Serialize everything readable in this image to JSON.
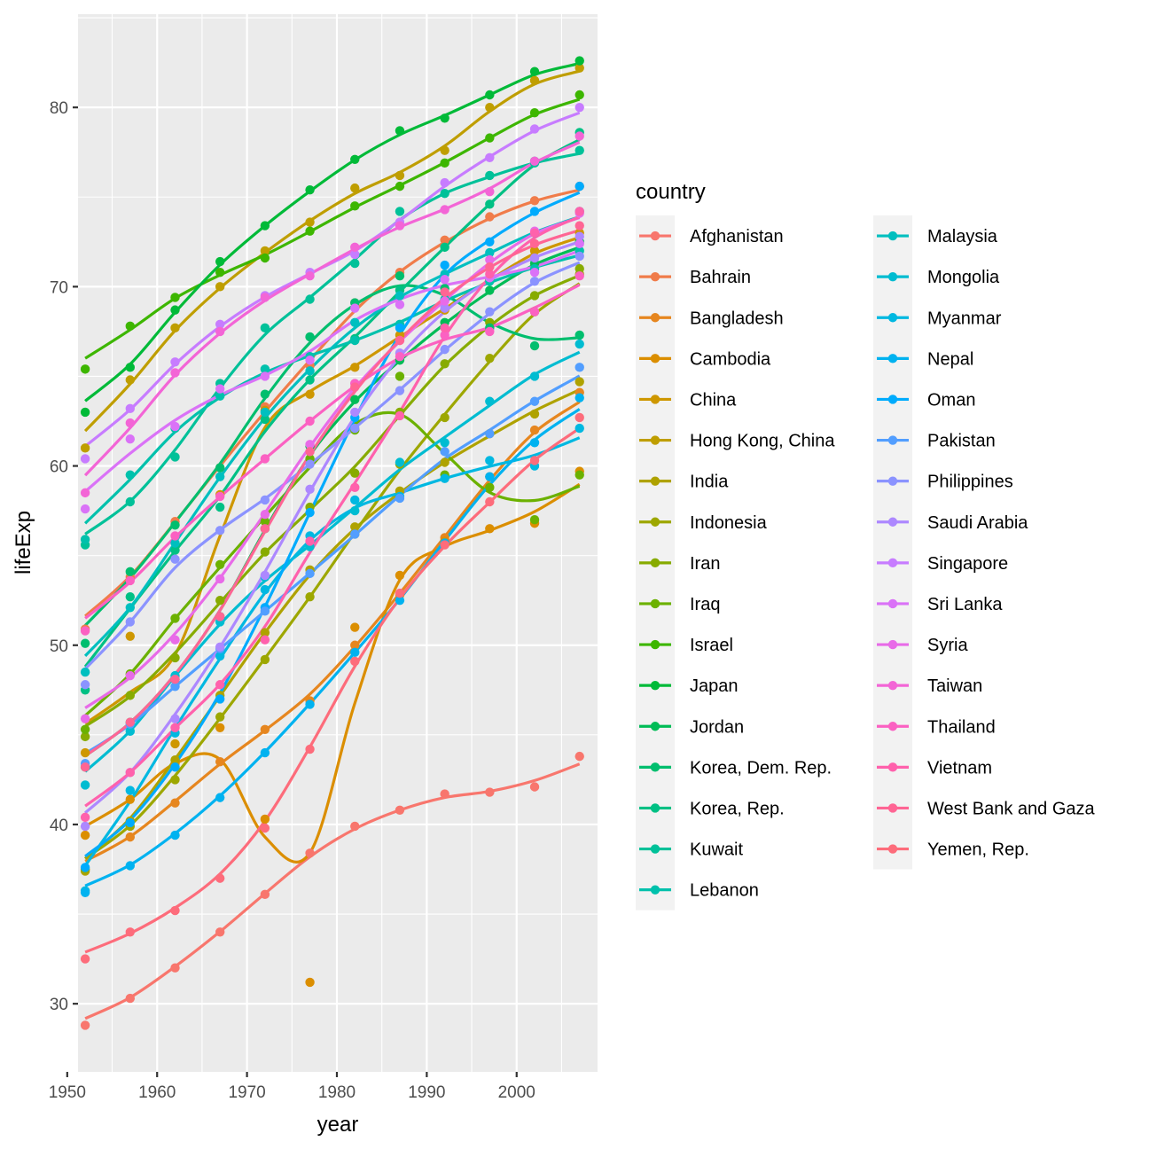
{
  "chart_data": {
    "type": "scatter",
    "subtype": "points-with-smoothed-lines",
    "xlabel": "year",
    "ylabel": "lifeExp",
    "xlim": [
      1951.2,
      2009
    ],
    "ylim": [
      26.2,
      85.2
    ],
    "x_ticks": [
      1950,
      1960,
      1970,
      1980,
      1990,
      2000
    ],
    "y_ticks": [
      30,
      40,
      50,
      60,
      70,
      80
    ],
    "grid": true,
    "legend": {
      "title": "country",
      "position": "right",
      "columns": 2
    },
    "x": [
      1952,
      1957,
      1962,
      1967,
      1972,
      1977,
      1982,
      1987,
      1992,
      1997,
      2002,
      2007
    ],
    "series": [
      {
        "name": "Afghanistan",
        "color": "#F8766D",
        "values": [
          28.8,
          30.3,
          32.0,
          34.0,
          36.1,
          38.4,
          39.9,
          40.8,
          41.7,
          41.8,
          42.1,
          43.8
        ]
      },
      {
        "name": "Bahrain",
        "color": "#F07C4A",
        "values": [
          50.9,
          53.8,
          56.9,
          59.9,
          63.3,
          65.6,
          69.1,
          70.8,
          72.6,
          73.9,
          74.8,
          75.6
        ]
      },
      {
        "name": "Bangladesh",
        "color": "#E6861F",
        "values": [
          37.5,
          39.3,
          41.2,
          43.5,
          45.3,
          46.9,
          50.0,
          52.8,
          56.0,
          59.4,
          62.0,
          64.1
        ]
      },
      {
        "name": "Cambodia",
        "color": "#DB8E00",
        "values": [
          39.4,
          41.4,
          43.4,
          45.4,
          40.3,
          31.2,
          51.0,
          53.9,
          55.8,
          56.5,
          56.8,
          59.7
        ]
      },
      {
        "name": "China",
        "color": "#CE9700",
        "values": [
          44.0,
          50.5,
          44.5,
          58.4,
          63.1,
          64.0,
          65.5,
          67.3,
          68.7,
          70.4,
          72.0,
          73.0
        ]
      },
      {
        "name": "Hong Kong, China",
        "color": "#BF9E00",
        "values": [
          61.0,
          64.8,
          67.7,
          70.0,
          72.0,
          73.6,
          75.5,
          76.2,
          77.6,
          80.0,
          81.5,
          82.2
        ]
      },
      {
        "name": "India",
        "color": "#AFA200",
        "values": [
          37.4,
          40.2,
          43.6,
          47.2,
          50.7,
          54.2,
          56.6,
          58.6,
          60.2,
          61.8,
          62.9,
          64.7
        ]
      },
      {
        "name": "Indonesia",
        "color": "#9DA700",
        "values": [
          37.5,
          39.9,
          42.5,
          46.0,
          49.2,
          52.7,
          56.2,
          60.1,
          62.7,
          66.0,
          68.6,
          70.7
        ]
      },
      {
        "name": "Iran",
        "color": "#87AB00",
        "values": [
          44.9,
          47.2,
          49.3,
          52.5,
          55.2,
          57.7,
          59.6,
          63.0,
          65.7,
          68.0,
          69.5,
          71.0
        ]
      },
      {
        "name": "Iraq",
        "color": "#6BB100",
        "values": [
          45.3,
          48.4,
          51.5,
          54.5,
          56.9,
          60.4,
          62.0,
          65.0,
          59.5,
          58.8,
          57.0,
          59.5
        ]
      },
      {
        "name": "Israel",
        "color": "#3DB600",
        "values": [
          65.4,
          67.8,
          69.4,
          70.8,
          71.6,
          73.1,
          74.5,
          75.6,
          76.9,
          78.3,
          79.7,
          80.7
        ]
      },
      {
        "name": "Japan",
        "color": "#00BA38",
        "values": [
          63.0,
          65.5,
          68.7,
          71.4,
          73.4,
          75.4,
          77.1,
          78.7,
          79.4,
          80.7,
          82.0,
          82.6
        ]
      },
      {
        "name": "Jordan",
        "color": "#00BC56",
        "values": [
          43.2,
          45.7,
          48.1,
          51.6,
          56.5,
          61.1,
          63.7,
          65.9,
          68.0,
          69.8,
          71.3,
          72.5
        ]
      },
      {
        "name": "Korea, Dem. Rep.",
        "color": "#00BE6E",
        "values": [
          50.1,
          54.1,
          56.7,
          59.9,
          64.0,
          67.2,
          69.1,
          70.6,
          69.9,
          67.7,
          66.7,
          67.3
        ]
      },
      {
        "name": "Korea, Rep.",
        "color": "#00C084",
        "values": [
          47.5,
          52.7,
          55.3,
          57.7,
          62.6,
          64.8,
          67.1,
          69.8,
          72.2,
          74.6,
          77.0,
          78.6
        ]
      },
      {
        "name": "Kuwait",
        "color": "#00C199",
        "values": [
          55.6,
          58.0,
          60.5,
          64.6,
          67.7,
          69.3,
          71.3,
          74.2,
          75.2,
          76.2,
          76.9,
          77.6
        ]
      },
      {
        "name": "Lebanon",
        "color": "#00C1AC",
        "values": [
          55.9,
          59.5,
          62.1,
          63.9,
          65.4,
          66.1,
          67.0,
          67.9,
          69.3,
          70.3,
          71.0,
          72.0
        ]
      },
      {
        "name": "Malaysia",
        "color": "#00BFBF",
        "values": [
          48.5,
          52.1,
          55.7,
          59.4,
          63.0,
          65.3,
          68.0,
          69.5,
          70.7,
          71.9,
          73.0,
          74.2
        ]
      },
      {
        "name": "Mongolia",
        "color": "#00BCD1",
        "values": [
          42.2,
          45.2,
          48.3,
          51.3,
          53.8,
          55.5,
          57.5,
          60.2,
          61.3,
          63.6,
          65.0,
          66.8
        ]
      },
      {
        "name": "Myanmar",
        "color": "#00B8E1",
        "values": [
          36.3,
          41.9,
          45.1,
          49.4,
          53.1,
          56.1,
          58.1,
          58.3,
          59.3,
          60.3,
          60.0,
          62.1
        ]
      },
      {
        "name": "Nepal",
        "color": "#00B2F0",
        "values": [
          36.2,
          37.7,
          39.4,
          41.5,
          44.0,
          46.7,
          49.6,
          52.5,
          55.7,
          59.4,
          61.3,
          63.8
        ]
      },
      {
        "name": "Oman",
        "color": "#00ABFD",
        "values": [
          37.6,
          40.1,
          43.2,
          47.0,
          52.1,
          57.4,
          62.7,
          67.7,
          71.2,
          72.5,
          74.2,
          75.6
        ]
      },
      {
        "name": "Pakistan",
        "color": "#529EFF",
        "values": [
          43.4,
          45.6,
          47.7,
          49.8,
          51.9,
          54.0,
          56.2,
          58.2,
          60.8,
          61.8,
          63.6,
          65.5
        ]
      },
      {
        "name": "Philippines",
        "color": "#8B93FF",
        "values": [
          47.8,
          51.3,
          54.8,
          56.4,
          58.1,
          60.1,
          62.1,
          64.2,
          66.5,
          68.6,
          70.3,
          71.7
        ]
      },
      {
        "name": "Saudi Arabia",
        "color": "#AD88FF",
        "values": [
          39.9,
          42.9,
          45.9,
          49.9,
          53.9,
          58.7,
          63.0,
          66.3,
          68.8,
          70.5,
          71.6,
          72.8
        ]
      },
      {
        "name": "Singapore",
        "color": "#C77CFF",
        "values": [
          60.4,
          63.2,
          65.8,
          67.9,
          69.5,
          70.8,
          71.8,
          73.6,
          75.8,
          77.2,
          78.8,
          80.0
        ]
      },
      {
        "name": "Sri Lanka",
        "color": "#DA72F7",
        "values": [
          57.6,
          61.5,
          62.2,
          64.3,
          65.0,
          65.9,
          68.8,
          69.0,
          70.4,
          70.5,
          70.8,
          72.4
        ]
      },
      {
        "name": "Syria",
        "color": "#E86BE8",
        "values": [
          45.9,
          48.3,
          50.3,
          53.7,
          57.3,
          61.2,
          64.6,
          67.0,
          69.2,
          71.5,
          73.1,
          74.1
        ]
      },
      {
        "name": "Taiwan",
        "color": "#F365D6",
        "values": [
          58.5,
          62.4,
          65.2,
          67.5,
          69.4,
          70.6,
          72.2,
          73.4,
          74.3,
          75.3,
          77.0,
          78.4
        ]
      },
      {
        "name": "Thailand",
        "color": "#FB61C2",
        "values": [
          50.8,
          53.6,
          56.1,
          58.3,
          60.4,
          62.5,
          64.6,
          66.1,
          67.3,
          67.5,
          68.6,
          70.6
        ]
      },
      {
        "name": "Vietnam",
        "color": "#FF61AC",
        "values": [
          40.4,
          42.9,
          45.4,
          47.8,
          50.3,
          55.8,
          58.8,
          62.8,
          67.7,
          70.7,
          73.0,
          74.2
        ]
      },
      {
        "name": "West Bank and Gaza",
        "color": "#FF6594",
        "values": [
          43.2,
          45.7,
          48.1,
          51.6,
          56.5,
          60.8,
          64.4,
          67.0,
          69.7,
          71.1,
          72.4,
          73.4
        ]
      },
      {
        "name": "Yemen, Rep.",
        "color": "#FD6C7B",
        "values": [
          32.5,
          34.0,
          35.2,
          37.0,
          39.8,
          44.2,
          49.1,
          52.9,
          55.6,
          58.0,
          60.3,
          62.7
        ]
      }
    ]
  }
}
